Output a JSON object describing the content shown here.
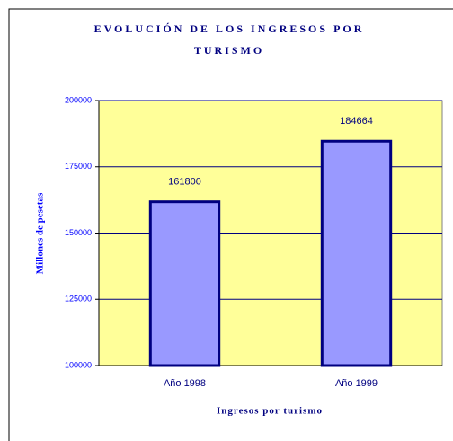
{
  "chart_data": {
    "type": "bar",
    "title": "EVOLUCIÓN DE LOS INGRESOS POR TURISMO",
    "xlabel": "Ingresos por turismo",
    "ylabel": "Millones de pesetas",
    "categories": [
      "Año 1998",
      "Año 1999"
    ],
    "values": [
      161800,
      184664
    ],
    "color": "#9999ff",
    "ylim": [
      100000,
      200000
    ],
    "yticks": [
      100000,
      125000,
      150000,
      175000,
      200000
    ],
    "grid": true
  }
}
